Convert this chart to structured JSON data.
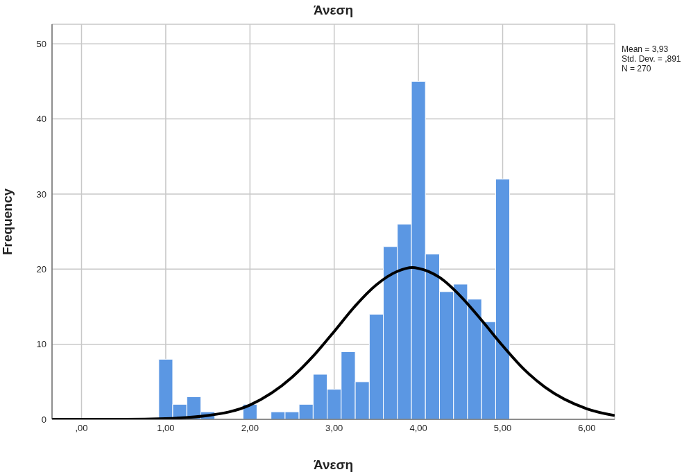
{
  "chart_data": {
    "type": "histogram",
    "title": "Άνεση",
    "xlabel": "Άνεση",
    "ylabel": "Frequency",
    "bins": [
      0.917,
      1.083,
      1.25,
      1.417,
      1.583,
      1.75,
      1.917,
      2.083,
      2.25,
      2.417,
      2.583,
      2.75,
      2.917,
      3.083,
      3.25,
      3.417,
      3.583,
      3.75,
      3.917,
      4.083,
      4.25,
      4.417,
      4.583,
      4.75,
      4.917,
      5.083
    ],
    "values": [
      8,
      2,
      3,
      1,
      0,
      0,
      2,
      0,
      1,
      1,
      2,
      6,
      4,
      9,
      5,
      14,
      23,
      26,
      45,
      22,
      17,
      18,
      16,
      13,
      32
    ],
    "color": "#5b97e3",
    "series": [
      {
        "type": "line",
        "color": "#000000",
        "x": [
          -0.35,
          0.5,
          1.0,
          1.5,
          2.0,
          2.5,
          2.75,
          3.0,
          3.25,
          3.5,
          3.75,
          3.93,
          4.0,
          4.25,
          4.5,
          4.75,
          5.0,
          5.25,
          5.5,
          6.0,
          6.33
        ],
        "values": [
          0.0,
          0.0,
          0.1,
          0.5,
          1.9,
          5.6,
          8.4,
          11.7,
          15.1,
          17.9,
          19.7,
          20.2,
          20.1,
          18.9,
          16.4,
          13.2,
          9.8,
          6.7,
          4.3,
          1.4,
          0.5
        ]
      }
    ],
    "xlim": [
      -0.35,
      6.33
    ],
    "xticks": [
      {
        "value": 0,
        "label": ",00"
      },
      {
        "value": 1,
        "label": "1,00"
      },
      {
        "value": 2,
        "label": "2,00"
      },
      {
        "value": 3,
        "label": "3,00"
      },
      {
        "value": 4,
        "label": "4,00"
      },
      {
        "value": 5,
        "label": "5,00"
      },
      {
        "value": 6,
        "label": "6,00"
      }
    ],
    "ylim": [
      0,
      52.6
    ],
    "yticks": [
      0,
      10,
      20,
      30,
      40,
      50
    ],
    "grid": true,
    "annotations": [
      "Mean = 3,93",
      "Std. Dev. = ,891",
      "N = 270"
    ]
  }
}
